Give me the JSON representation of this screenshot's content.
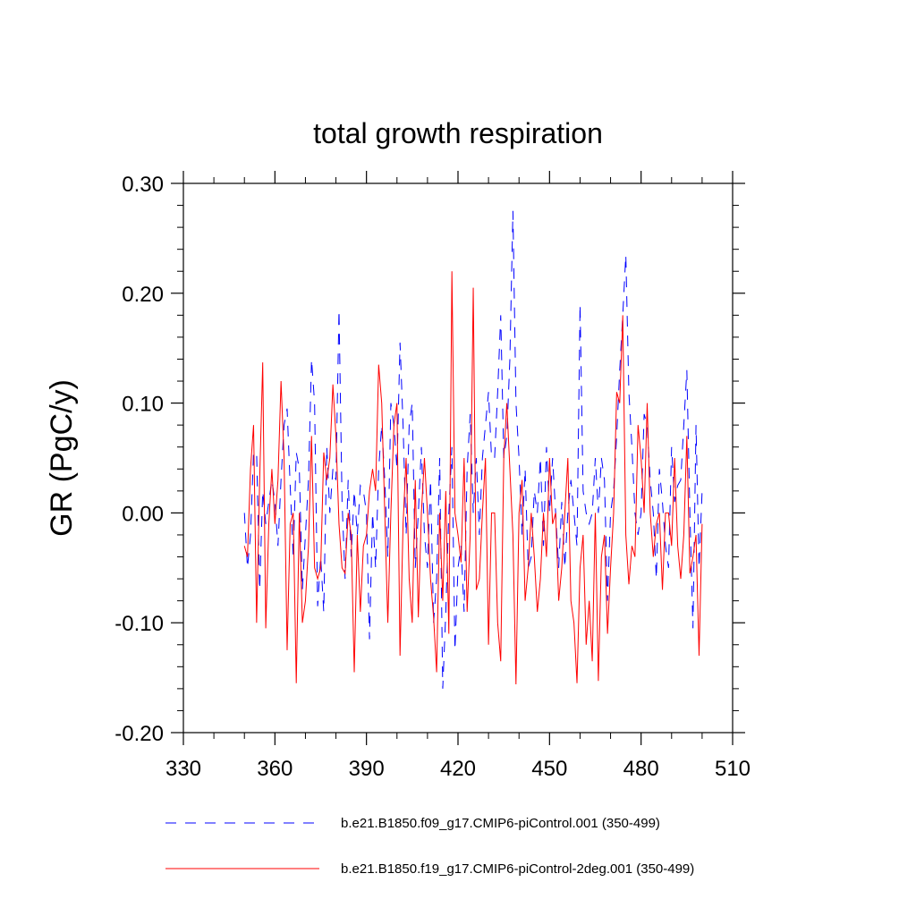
{
  "chart_data": {
    "type": "line",
    "title": "total growth respiration",
    "xlabel": "",
    "ylabel": "GR  (PgC/y)",
    "xlim": [
      330,
      510
    ],
    "ylim": [
      -0.2,
      0.3
    ],
    "xticks": [
      330,
      360,
      390,
      420,
      450,
      480,
      510
    ],
    "xtick_labels": [
      "330",
      "360",
      "390",
      "420",
      "450",
      "480",
      "510"
    ],
    "yticks": [
      -0.2,
      -0.1,
      0.0,
      0.1,
      0.2,
      0.3
    ],
    "ytick_labels": [
      "-0.20",
      "-0.10",
      "0.00",
      "0.10",
      "0.20",
      "0.30"
    ],
    "grid": false,
    "legend_position": "bottom",
    "series": [
      {
        "name": "b.e21.B1850.f09_g17.CMIP6-piControl.001 (350-499)",
        "color": "#0000ff",
        "dash": "dashed",
        "x_start": 350,
        "x_step": 1,
        "values": [
          0.0,
          -0.05,
          -0.02,
          0.055,
          0.055,
          -0.07,
          0.02,
          -0.01,
          0.01,
          0.03,
          0.01,
          -0.03,
          0.03,
          0.08,
          0.095,
          0.025,
          -0.04,
          0.055,
          0.04,
          -0.07,
          -0.02,
          0.03,
          0.14,
          0.1,
          -0.085,
          -0.04,
          -0.09,
          0.06,
          0.0,
          0.04,
          0.03,
          0.185,
          0.01,
          -0.06,
          0.03,
          -0.04,
          0.02,
          -0.02,
          0.025,
          0.02,
          0.0,
          -0.115,
          0.0,
          -0.05,
          0.04,
          0.08,
          0.03,
          -0.04,
          0.1,
          0.08,
          0.04,
          0.155,
          0.08,
          -0.02,
          0.08,
          0.1,
          -0.05,
          0.0,
          0.06,
          -0.02,
          -0.05,
          0.03,
          -0.1,
          -0.06,
          0.05,
          -0.16,
          -0.09,
          0.0,
          0.06,
          -0.125,
          -0.05,
          -0.03,
          -0.09,
          0.04,
          0.09,
          0.0,
          0.05,
          -0.02,
          0.05,
          0.08,
          0.11,
          0.05,
          0.05,
          0.11,
          0.18,
          0.05,
          0.07,
          0.14,
          0.275,
          0.1,
          0.05,
          -0.02,
          0.04,
          -0.05,
          -0.04,
          0.02,
          0.0,
          0.05,
          -0.03,
          0.06,
          0.0,
          0.05,
          0.0,
          -0.05,
          0.01,
          -0.05,
          0.0,
          0.03,
          0.0,
          -0.03,
          0.19,
          0.02,
          0.0,
          -0.01,
          0.0,
          0.05,
          0.0,
          0.05,
          0.03,
          -0.08,
          0.0,
          0.02,
          0.07,
          0.13,
          0.18,
          0.235,
          0.11,
          0.06,
          0.0,
          -0.02,
          0.0,
          0.09,
          0.08,
          0.03,
          0.0,
          -0.06,
          0.04,
          0.01,
          -0.03,
          -0.05,
          0.06,
          0.01,
          0.025,
          0.03,
          0.08,
          0.13,
          0.0,
          -0.105,
          0.08,
          -0.05,
          0.02,
          0.02
        ]
      },
      {
        "name": "b.e21.B1850.f19_g17.CMIP6-piControl-2deg.001 (350-499)",
        "color": "#ff0000",
        "dash": "solid",
        "x_start": 350,
        "x_step": 1,
        "values": [
          -0.03,
          -0.04,
          0.04,
          0.08,
          -0.1,
          0.03,
          0.137,
          -0.105,
          -0.01,
          0.04,
          -0.01,
          0.03,
          0.12,
          0.05,
          -0.125,
          -0.01,
          0.0,
          -0.155,
          0.0,
          -0.1,
          -0.08,
          -0.03,
          0.07,
          -0.05,
          -0.06,
          -0.05,
          0.055,
          0.03,
          0.05,
          0.117,
          0.07,
          -0.01,
          -0.05,
          -0.055,
          0.0,
          -0.02,
          -0.145,
          -0.02,
          -0.09,
          -0.03,
          -0.02,
          0.02,
          0.04,
          0.02,
          0.135,
          0.1,
          0.0,
          -0.1,
          0.0,
          0.08,
          0.1,
          -0.13,
          -0.01,
          0.05,
          -0.06,
          -0.1,
          0.03,
          -0.095,
          0.0,
          0.05,
          0.0,
          -0.06,
          -0.095,
          -0.145,
          0.0,
          -0.08,
          0.02,
          -0.11,
          0.22,
          0.0,
          -0.02,
          -0.045,
          0.05,
          -0.09,
          -0.02,
          0.205,
          -0.07,
          -0.06,
          0.0,
          0.05,
          -0.12,
          0.0,
          0.0,
          -0.1,
          -0.135,
          0.05,
          0.1,
          0.04,
          -0.02,
          -0.156,
          0.0,
          0.03,
          -0.08,
          -0.05,
          0.0,
          -0.04,
          -0.09,
          -0.06,
          0.0,
          -0.04,
          0.05,
          -0.01,
          0.0,
          -0.08,
          -0.05,
          0.0,
          0.05,
          -0.08,
          -0.1,
          -0.155,
          -0.05,
          -0.02,
          -0.12,
          -0.08,
          -0.135,
          0.0,
          -0.153,
          -0.04,
          -0.02,
          -0.11,
          -0.05,
          0.0,
          0.11,
          0.1,
          0.18,
          -0.02,
          -0.065,
          -0.03,
          -0.04,
          0.08,
          0.05,
          0.0,
          0.1,
          0.0,
          -0.04,
          -0.01,
          0.0,
          -0.07,
          0.0,
          0.0,
          -0.03,
          0.05,
          -0.03,
          -0.06,
          -0.02,
          0.07,
          -0.055,
          -0.04,
          -0.02,
          -0.13,
          -0.01
        ]
      }
    ]
  }
}
